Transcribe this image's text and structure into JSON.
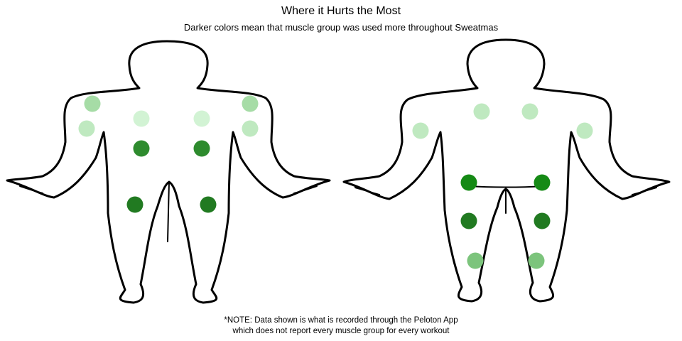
{
  "chart_data": {
    "type": "heatmap",
    "title": "Where it Hurts the Most",
    "subtitle": "Darker colors mean that muscle group was used more throughout Sweatmas",
    "note": {
      "line1": "*NOTE: Data shown is what is recorded through the Peloton App",
      "line2": "which does not report every muscle group for every workout"
    },
    "scale_colors": [
      "#d2f3d4",
      "#bfe9c0",
      "#a6dca6",
      "#7cc47c",
      "#2e8b2e",
      "#217a21",
      "#158a15"
    ],
    "markers": [
      {
        "view": "front",
        "side": "left",
        "group": "shoulder",
        "level": 3
      },
      {
        "view": "front",
        "side": "right",
        "group": "shoulder",
        "level": 3
      },
      {
        "view": "front",
        "side": "left",
        "group": "bicep",
        "level": 2
      },
      {
        "view": "front",
        "side": "right",
        "group": "bicep",
        "level": 2
      },
      {
        "view": "front",
        "side": "left",
        "group": "chest",
        "level": 1
      },
      {
        "view": "front",
        "side": "right",
        "group": "chest",
        "level": 1
      },
      {
        "view": "front",
        "side": "left",
        "group": "core",
        "level": 5
      },
      {
        "view": "front",
        "side": "right",
        "group": "core",
        "level": 5
      },
      {
        "view": "front",
        "side": "left",
        "group": "quads",
        "level": 6
      },
      {
        "view": "front",
        "side": "right",
        "group": "quads",
        "level": 6
      },
      {
        "view": "back",
        "side": "left",
        "group": "back",
        "level": 2
      },
      {
        "view": "back",
        "side": "right",
        "group": "back",
        "level": 2
      },
      {
        "view": "back",
        "side": "left",
        "group": "tricep",
        "level": 2
      },
      {
        "view": "back",
        "side": "right",
        "group": "tricep",
        "level": 2
      },
      {
        "view": "back",
        "side": "left",
        "group": "glutes",
        "level": 7
      },
      {
        "view": "back",
        "side": "right",
        "group": "glutes",
        "level": 7
      },
      {
        "view": "back",
        "side": "left",
        "group": "hamstrings",
        "level": 6
      },
      {
        "view": "back",
        "side": "right",
        "group": "hamstrings",
        "level": 6
      },
      {
        "view": "back",
        "side": "left",
        "group": "calves",
        "level": 4
      },
      {
        "view": "back",
        "side": "right",
        "group": "calves",
        "level": 4
      }
    ]
  }
}
